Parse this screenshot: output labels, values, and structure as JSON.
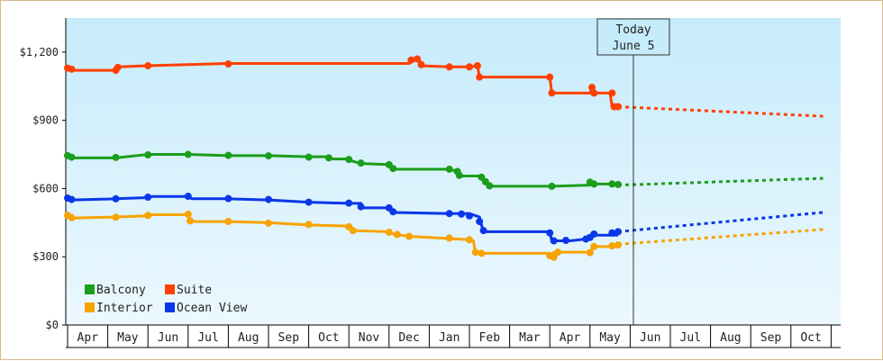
{
  "chart_data": {
    "type": "line",
    "title": "",
    "xlabel": "",
    "ylabel": "",
    "ylim": [
      0,
      1350
    ],
    "y_ticks": [
      {
        "value": 0,
        "label": "$0"
      },
      {
        "value": 300,
        "label": "$300"
      },
      {
        "value": 600,
        "label": "$600"
      },
      {
        "value": 900,
        "label": "$900"
      },
      {
        "value": 1200,
        "label": "$1,200"
      }
    ],
    "x_months": [
      "Apr",
      "May",
      "Jun",
      "Jul",
      "Aug",
      "Sep",
      "Oct",
      "Nov",
      "Dec",
      "Jan",
      "Feb",
      "Mar",
      "Apr",
      "May",
      "Jun",
      "Jul",
      "Aug",
      "Sep",
      "Oct"
    ],
    "today_index": 14.08,
    "today_label": [
      "Today",
      "June 5"
    ],
    "legend_position": "bottom-left",
    "grid": false,
    "colors": {
      "Balcony": "#1b9e1b",
      "Suite": "#ff4000",
      "Interior": "#f7a300",
      "Ocean View": "#0a37e8"
    },
    "legend": [
      "Balcony",
      "Suite",
      "Interior",
      "Ocean View"
    ],
    "series": [
      {
        "name": "Suite",
        "history": [
          [
            0,
            1130
          ],
          [
            0.1,
            1120
          ],
          [
            1.2,
            1120
          ],
          [
            1.25,
            1135
          ],
          [
            2.0,
            1140
          ],
          [
            4.0,
            1150
          ],
          [
            8.5,
            1150
          ],
          [
            8.6,
            1170
          ],
          [
            8.75,
            1170
          ],
          [
            8.8,
            1140
          ],
          [
            9.5,
            1135
          ],
          [
            10.0,
            1135
          ],
          [
            10.2,
            1140
          ],
          [
            10.25,
            1090
          ],
          [
            12.0,
            1090
          ],
          [
            12.05,
            1020
          ],
          [
            13.0,
            1020
          ],
          [
            13.05,
            1045
          ],
          [
            13.1,
            1020
          ],
          [
            13.5,
            1020
          ],
          [
            13.55,
            960
          ],
          [
            13.7,
            960
          ]
        ],
        "forecast": [
          [
            13.7,
            960
          ],
          [
            18.8,
            918
          ]
        ],
        "markers": [
          [
            0,
            1130
          ],
          [
            0.1,
            1125
          ],
          [
            1.2,
            1120
          ],
          [
            1.25,
            1133
          ],
          [
            2.0,
            1140
          ],
          [
            4.0,
            1148
          ],
          [
            8.55,
            1165
          ],
          [
            8.7,
            1170
          ],
          [
            8.8,
            1145
          ],
          [
            9.5,
            1135
          ],
          [
            10.0,
            1135
          ],
          [
            10.2,
            1140
          ],
          [
            10.25,
            1090
          ],
          [
            12.0,
            1090
          ],
          [
            12.05,
            1020
          ],
          [
            13.05,
            1045
          ],
          [
            13.1,
            1020
          ],
          [
            13.55,
            1020
          ],
          [
            13.6,
            960
          ],
          [
            13.7,
            960
          ]
        ]
      },
      {
        "name": "Balcony",
        "history": [
          [
            0,
            745
          ],
          [
            0.1,
            735
          ],
          [
            1.2,
            735
          ],
          [
            2.0,
            750
          ],
          [
            3.0,
            750
          ],
          [
            4.0,
            745
          ],
          [
            5.0,
            745
          ],
          [
            6.0,
            740
          ],
          [
            6.5,
            740
          ],
          [
            6.6,
            730
          ],
          [
            7.0,
            730
          ],
          [
            7.1,
            720
          ],
          [
            7.3,
            710
          ],
          [
            8.0,
            705
          ],
          [
            8.1,
            685
          ],
          [
            9.5,
            685
          ],
          [
            9.7,
            675
          ],
          [
            9.75,
            655
          ],
          [
            10.3,
            655
          ],
          [
            10.35,
            630
          ],
          [
            10.5,
            610
          ],
          [
            12.05,
            610
          ],
          [
            13.0,
            615
          ],
          [
            13.05,
            630
          ],
          [
            13.1,
            620
          ],
          [
            13.7,
            620
          ]
        ],
        "forecast": [
          [
            13.7,
            615
          ],
          [
            18.8,
            645
          ]
        ],
        "markers": [
          [
            0,
            745
          ],
          [
            0.1,
            738
          ],
          [
            1.2,
            737
          ],
          [
            2.0,
            748
          ],
          [
            3.0,
            750
          ],
          [
            4.0,
            746
          ],
          [
            5.0,
            744
          ],
          [
            6.0,
            738
          ],
          [
            6.5,
            735
          ],
          [
            7.0,
            728
          ],
          [
            7.3,
            712
          ],
          [
            8.0,
            705
          ],
          [
            8.1,
            688
          ],
          [
            9.5,
            685
          ],
          [
            9.7,
            675
          ],
          [
            9.75,
            658
          ],
          [
            10.3,
            650
          ],
          [
            10.4,
            630
          ],
          [
            10.5,
            612
          ],
          [
            12.05,
            610
          ],
          [
            13.0,
            628
          ],
          [
            13.1,
            620
          ],
          [
            13.55,
            620
          ],
          [
            13.7,
            618
          ]
        ]
      },
      {
        "name": "Ocean View",
        "history": [
          [
            0,
            560
          ],
          [
            0.1,
            550
          ],
          [
            1.2,
            555
          ],
          [
            2.0,
            560
          ],
          [
            2.1,
            565
          ],
          [
            3.0,
            565
          ],
          [
            3.1,
            555
          ],
          [
            4.0,
            555
          ],
          [
            5.0,
            550
          ],
          [
            6.0,
            540
          ],
          [
            7.0,
            535
          ],
          [
            7.3,
            535
          ],
          [
            7.35,
            515
          ],
          [
            8.0,
            515
          ],
          [
            8.1,
            495
          ],
          [
            9.5,
            490
          ],
          [
            10.0,
            490
          ],
          [
            10.25,
            475
          ],
          [
            10.3,
            440
          ],
          [
            10.35,
            410
          ],
          [
            12.0,
            410
          ],
          [
            12.05,
            370
          ],
          [
            12.5,
            370
          ],
          [
            13.0,
            380
          ],
          [
            13.1,
            395
          ],
          [
            13.7,
            395
          ]
        ],
        "forecast": [
          [
            13.7,
            410
          ],
          [
            18.8,
            495
          ]
        ],
        "markers": [
          [
            0,
            558
          ],
          [
            0.1,
            552
          ],
          [
            1.2,
            555
          ],
          [
            2.0,
            562
          ],
          [
            3.0,
            566
          ],
          [
            4.0,
            556
          ],
          [
            5.0,
            552
          ],
          [
            6.0,
            540
          ],
          [
            7.0,
            536
          ],
          [
            7.3,
            520
          ],
          [
            8.0,
            515
          ],
          [
            8.1,
            498
          ],
          [
            9.5,
            490
          ],
          [
            9.8,
            488
          ],
          [
            10.0,
            480
          ],
          [
            10.25,
            455
          ],
          [
            10.35,
            415
          ],
          [
            12.0,
            405
          ],
          [
            12.1,
            370
          ],
          [
            12.4,
            372
          ],
          [
            12.9,
            378
          ],
          [
            13.0,
            385
          ],
          [
            13.1,
            400
          ],
          [
            13.55,
            405
          ],
          [
            13.7,
            410
          ]
        ]
      },
      {
        "name": "Interior",
        "history": [
          [
            0,
            480
          ],
          [
            0.1,
            470
          ],
          [
            1.2,
            475
          ],
          [
            2.0,
            480
          ],
          [
            2.1,
            485
          ],
          [
            3.0,
            485
          ],
          [
            3.05,
            455
          ],
          [
            4.0,
            455
          ],
          [
            5.0,
            450
          ],
          [
            6.0,
            440
          ],
          [
            7.0,
            435
          ],
          [
            7.1,
            415
          ],
          [
            8.0,
            410
          ],
          [
            8.1,
            400
          ],
          [
            8.5,
            390
          ],
          [
            9.5,
            380
          ],
          [
            10.0,
            375
          ],
          [
            10.1,
            370
          ],
          [
            10.15,
            315
          ],
          [
            12.0,
            315
          ],
          [
            12.05,
            300
          ],
          [
            12.1,
            320
          ],
          [
            13.0,
            320
          ],
          [
            13.1,
            345
          ],
          [
            13.7,
            345
          ]
        ],
        "forecast": [
          [
            13.7,
            355
          ],
          [
            18.8,
            420
          ]
        ],
        "markers": [
          [
            0,
            482
          ],
          [
            0.1,
            472
          ],
          [
            1.2,
            474
          ],
          [
            2.0,
            482
          ],
          [
            3.0,
            487
          ],
          [
            3.05,
            458
          ],
          [
            4.0,
            455
          ],
          [
            5.0,
            448
          ],
          [
            6.0,
            442
          ],
          [
            7.0,
            432
          ],
          [
            7.1,
            415
          ],
          [
            8.0,
            408
          ],
          [
            8.2,
            398
          ],
          [
            8.5,
            390
          ],
          [
            9.5,
            382
          ],
          [
            10.0,
            375
          ],
          [
            10.15,
            320
          ],
          [
            10.3,
            315
          ],
          [
            12.0,
            305
          ],
          [
            12.1,
            298
          ],
          [
            12.2,
            320
          ],
          [
            13.0,
            318
          ],
          [
            13.1,
            345
          ],
          [
            13.55,
            348
          ],
          [
            13.7,
            352
          ]
        ]
      }
    ]
  }
}
